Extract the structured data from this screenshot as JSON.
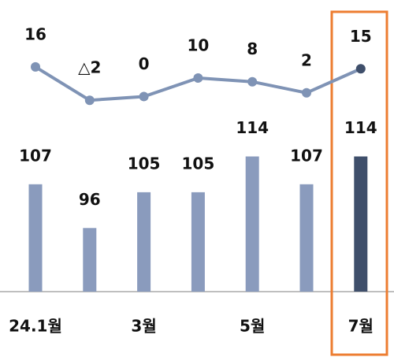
{
  "chart_data": {
    "type": "bar-line",
    "categories": [
      "24.1월",
      null,
      "3월",
      null,
      "5월",
      null,
      "7월"
    ],
    "series": [
      {
        "name": "bars",
        "type": "bar",
        "color": "#8a9bbd",
        "values": [
          107,
          96,
          105,
          105,
          114,
          107,
          114
        ]
      },
      {
        "name": "line",
        "type": "line",
        "axis": "y2",
        "color": "#7f93b5",
        "values": [
          16,
          -2,
          0,
          10,
          8,
          2,
          15
        ],
        "value_labels": [
          "16",
          "△2",
          "0",
          "10",
          "8",
          "2",
          "15"
        ]
      }
    ],
    "highlight_color": "#3f4f6b",
    "ylim": [
      80,
      125
    ],
    "y2lim": [
      -10,
      30
    ]
  }
}
